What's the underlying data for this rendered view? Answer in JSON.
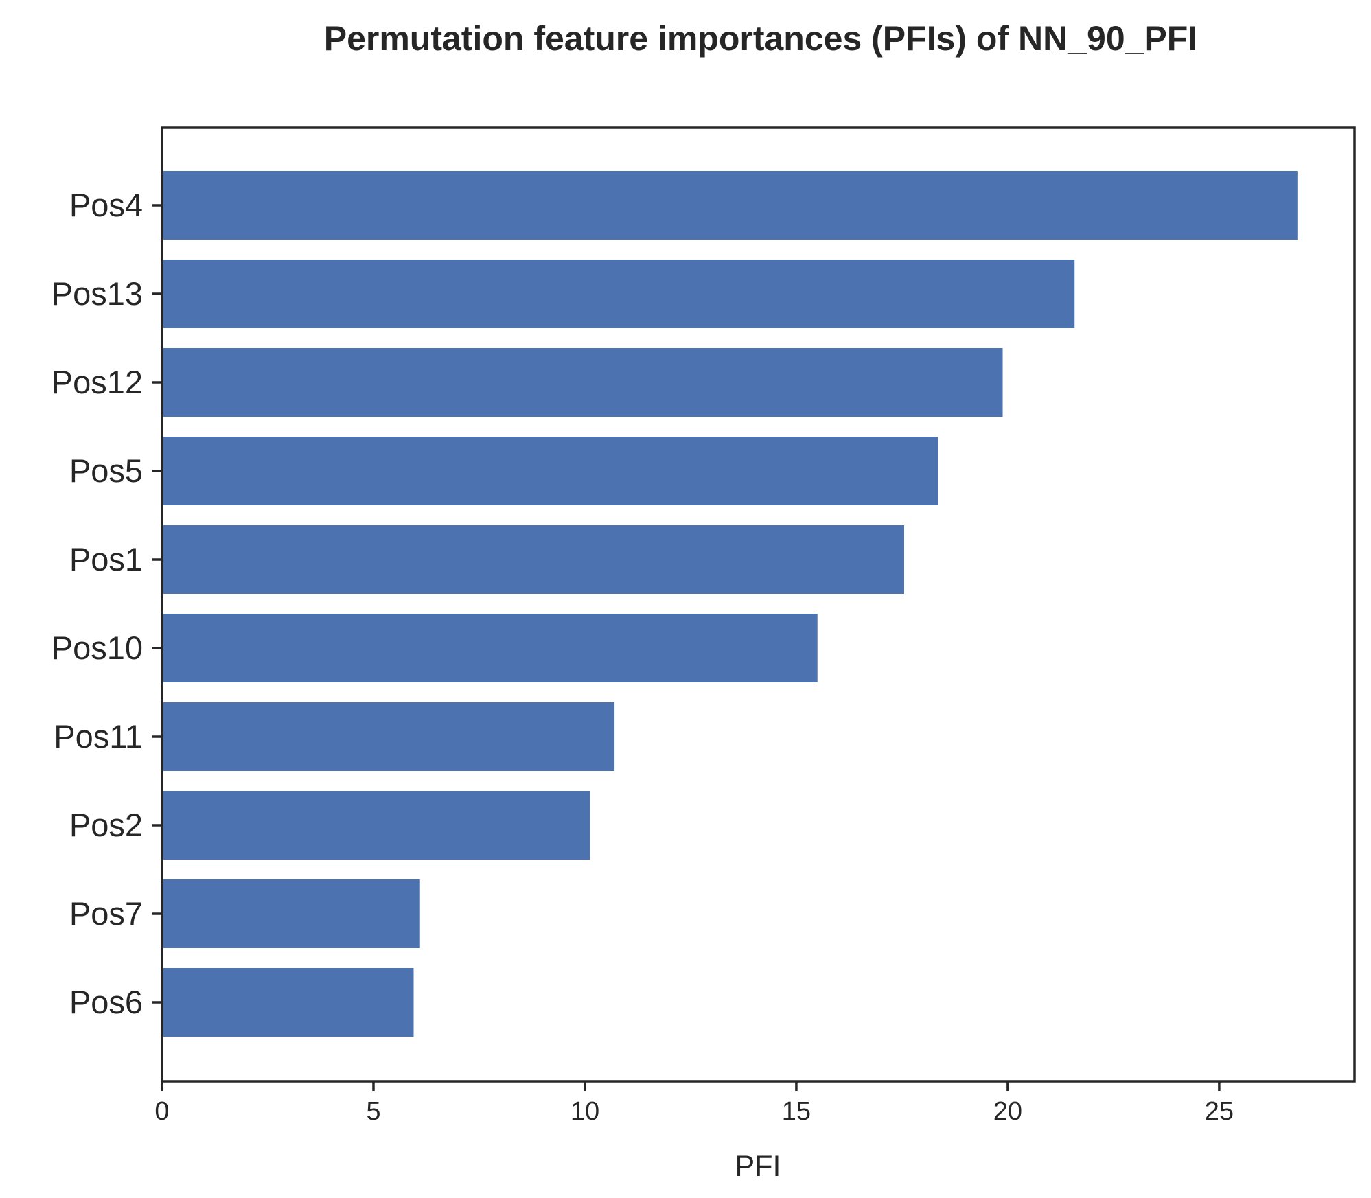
{
  "chart_data": {
    "type": "bar",
    "orientation": "horizontal",
    "title": "Permutation feature importances (PFIs) of NN_90_PFI",
    "xlabel": "PFI",
    "ylabel": "",
    "categories": [
      "Pos4",
      "Pos13",
      "Pos12",
      "Pos5",
      "Pos1",
      "Pos10",
      "Pos11",
      "Pos2",
      "Pos7",
      "Pos6"
    ],
    "values": [
      26.85,
      21.58,
      19.88,
      18.35,
      17.55,
      15.5,
      10.7,
      10.12,
      6.1,
      5.95
    ],
    "xlim": [
      0,
      28.2
    ],
    "xticks": [
      0,
      5,
      10,
      15,
      20,
      25
    ],
    "xtick_labels": [
      "0",
      "5",
      "10",
      "15",
      "20",
      "25"
    ],
    "bar_color": "#4c72b0",
    "grid": false,
    "legend": "none"
  }
}
